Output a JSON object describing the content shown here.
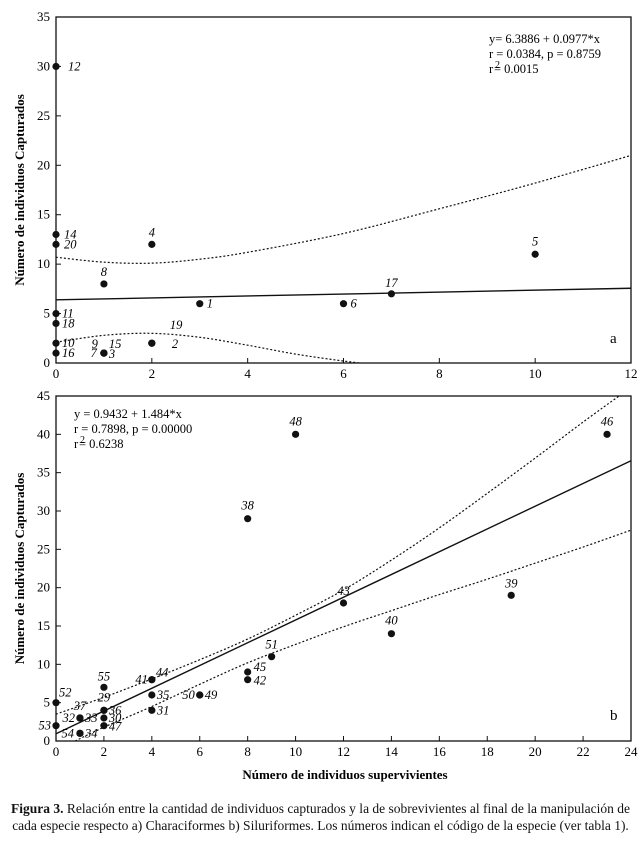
{
  "figure": {
    "shared_xlabel": "Número de individuos supervivientes",
    "caption_label": "Figura 3.",
    "caption_text": "Relación entre la cantidad de individuos capturados y la de sobrevivientes al final de la manipulación de cada especie respecto a) Characiformes b) Siluriformes. Los números indican el código de la especie (ver tabla 1)."
  },
  "chart_data": [
    {
      "panel": "a",
      "type": "scatter",
      "ylabel": "Número de individuos Capturados",
      "xlim": [
        0,
        12
      ],
      "ylim": [
        0,
        35
      ],
      "xticks": [
        "0",
        "2",
        "4",
        "6",
        "8",
        "10",
        "12"
      ],
      "yticks": [
        "0",
        "5",
        "10",
        "15",
        "20",
        "25",
        "30",
        "35"
      ],
      "equation": [
        "y= 6.3886 + 0.0977*x",
        "r = 0.0384, p = 0.8759",
        "r",
        "2",
        "= 0.0015"
      ],
      "regression": {
        "intercept": 6.3886,
        "slope": 0.0977
      },
      "confidence_upper": [
        [
          0,
          10.7
        ],
        [
          1,
          10.2
        ],
        [
          2,
          10.1
        ],
        [
          3,
          10.5
        ],
        [
          4,
          11.2
        ],
        [
          6,
          13.1
        ],
        [
          8,
          15.6
        ],
        [
          10,
          18.2
        ],
        [
          12,
          21
        ]
      ],
      "confidence_lower": [
        [
          0,
          2.1
        ],
        [
          1,
          2.8
        ],
        [
          2,
          3
        ],
        [
          3,
          2.6
        ],
        [
          4,
          1.8
        ],
        [
          5,
          0.9
        ],
        [
          6,
          0.2
        ],
        [
          6.7,
          -0.2
        ]
      ],
      "points": [
        {
          "label": "12",
          "x": 0,
          "y": 30
        },
        {
          "label": "14",
          "x": 0,
          "y": 13
        },
        {
          "label": "20",
          "x": 0,
          "y": 12
        },
        {
          "label": "11",
          "x": 0,
          "y": 5
        },
        {
          "label": "18",
          "x": 0,
          "y": 4
        },
        {
          "label": "10",
          "x": 0,
          "y": 2
        },
        {
          "label": "16",
          "x": 0,
          "y": 1
        },
        {
          "label": "8",
          "x": 1,
          "y": 8
        },
        {
          "label": "9",
          "x": 1,
          "y": 1
        },
        {
          "label": "15",
          "x": 1,
          "y": 1
        },
        {
          "label": "7",
          "x": 1,
          "y": 1
        },
        {
          "label": "3",
          "x": 1,
          "y": 1
        },
        {
          "label": "4",
          "x": 2,
          "y": 12
        },
        {
          "label": "19",
          "x": 2,
          "y": 2
        },
        {
          "label": "2",
          "x": 2,
          "y": 2
        },
        {
          "label": "1",
          "x": 3,
          "y": 6
        },
        {
          "label": "6",
          "x": 6,
          "y": 6
        },
        {
          "label": "17",
          "x": 7,
          "y": 7
        },
        {
          "label": "5",
          "x": 10,
          "y": 11
        }
      ]
    },
    {
      "panel": "b",
      "type": "scatter",
      "ylabel": "Número de individuos Capturados",
      "xlim": [
        0,
        24
      ],
      "ylim": [
        0,
        45
      ],
      "xticks": [
        "0",
        "2",
        "4",
        "6",
        "8",
        "10",
        "12",
        "14",
        "16",
        "18",
        "20",
        "22",
        "24"
      ],
      "yticks": [
        "0",
        "5",
        "10",
        "15",
        "20",
        "25",
        "30",
        "35",
        "40",
        "45"
      ],
      "equation": [
        "y = 0.9432 + 1.484*x",
        "r = 0.7898, p = 0.00000",
        "r",
        "2",
        "= 0.6238"
      ],
      "regression": {
        "intercept": 0.9432,
        "slope": 1.484
      },
      "confidence_upper": [
        [
          0,
          3.5
        ],
        [
          2,
          5.7
        ],
        [
          4,
          8.1
        ],
        [
          6,
          10.6
        ],
        [
          8,
          13.3
        ],
        [
          10,
          16.4
        ],
        [
          12,
          19.7
        ],
        [
          14,
          23.6
        ],
        [
          16,
          27.8
        ],
        [
          18,
          32.3
        ],
        [
          20,
          36.9
        ],
        [
          22,
          41.6
        ],
        [
          23.5,
          45
        ]
      ],
      "confidence_lower": [
        [
          0.8,
          0
        ],
        [
          2,
          1.8
        ],
        [
          4,
          4.5
        ],
        [
          6,
          7.4
        ],
        [
          8,
          10.2
        ],
        [
          10,
          12.6
        ],
        [
          12,
          14.9
        ],
        [
          14,
          17
        ],
        [
          16,
          19.1
        ],
        [
          18,
          21.1
        ],
        [
          20,
          23.2
        ],
        [
          22,
          25.3
        ],
        [
          24,
          27.5
        ]
      ],
      "points": [
        {
          "label": "52",
          "x": 0,
          "y": 5
        },
        {
          "label": "53",
          "x": 0,
          "y": 2
        },
        {
          "label": "37",
          "x": 1,
          "y": 3
        },
        {
          "label": "32",
          "x": 1,
          "y": 3
        },
        {
          "label": "33",
          "x": 1,
          "y": 3
        },
        {
          "label": "54",
          "x": 1,
          "y": 1
        },
        {
          "label": "34",
          "x": 1,
          "y": 1
        },
        {
          "label": "55",
          "x": 2,
          "y": 7
        },
        {
          "label": "29",
          "x": 2,
          "y": 4
        },
        {
          "label": "36",
          "x": 2,
          "y": 4
        },
        {
          "label": "30",
          "x": 2,
          "y": 3
        },
        {
          "label": "47",
          "x": 2,
          "y": 2
        },
        {
          "label": "41",
          "x": 4,
          "y": 8
        },
        {
          "label": "44",
          "x": 4,
          "y": 8
        },
        {
          "label": "35",
          "x": 4,
          "y": 6
        },
        {
          "label": "31",
          "x": 4,
          "y": 4
        },
        {
          "label": "50",
          "x": 6,
          "y": 6
        },
        {
          "label": "49",
          "x": 6,
          "y": 6
        },
        {
          "label": "38",
          "x": 8,
          "y": 29
        },
        {
          "label": "45",
          "x": 8,
          "y": 9
        },
        {
          "label": "42",
          "x": 8,
          "y": 8
        },
        {
          "label": "51",
          "x": 9,
          "y": 11
        },
        {
          "label": "48",
          "x": 10,
          "y": 40
        },
        {
          "label": "43",
          "x": 12,
          "y": 18
        },
        {
          "label": "40",
          "x": 14,
          "y": 14
        },
        {
          "label": "39",
          "x": 19,
          "y": 19
        },
        {
          "label": "46",
          "x": 23,
          "y": 40
        }
      ]
    }
  ]
}
